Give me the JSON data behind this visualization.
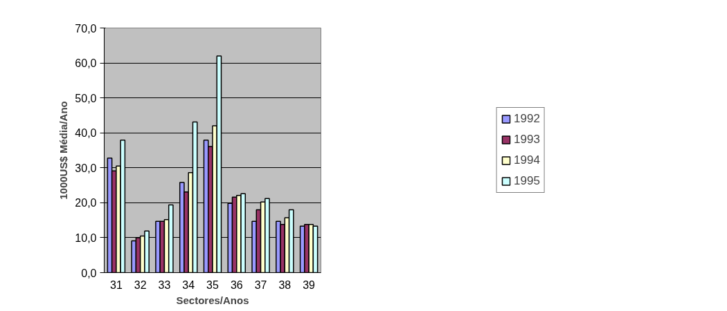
{
  "chart_data": {
    "type": "bar",
    "xlabel": "Sectores/Anos",
    "ylabel": "1000US$ Média/Ano",
    "categories": [
      "31",
      "32",
      "33",
      "34",
      "35",
      "36",
      "37",
      "38",
      "39"
    ],
    "series": [
      {
        "name": "1992",
        "color": "#9999ff",
        "values": [
          32.8,
          9.1,
          14.7,
          25.8,
          37.9,
          19.8,
          14.7,
          14.7,
          13.3
        ]
      },
      {
        "name": "1993",
        "color": "#993366",
        "values": [
          29.1,
          10.0,
          14.7,
          23.1,
          36.1,
          21.6,
          18.0,
          13.8,
          13.8
        ]
      },
      {
        "name": "1994",
        "color": "#ffffcc",
        "values": [
          30.5,
          10.5,
          15.2,
          28.6,
          42.0,
          22.1,
          20.2,
          15.7,
          13.8
        ]
      },
      {
        "name": "1995",
        "color": "#ccffff",
        "values": [
          37.9,
          11.9,
          19.4,
          43.1,
          62.0,
          22.6,
          21.2,
          18.0,
          13.3
        ]
      }
    ],
    "ylim": [
      0,
      70
    ],
    "yticks": [
      {
        "value": 0,
        "label": "0,0"
      },
      {
        "value": 10,
        "label": "10,0"
      },
      {
        "value": 20,
        "label": "20,0"
      },
      {
        "value": 30,
        "label": "30,0"
      },
      {
        "value": 40,
        "label": "40,0"
      },
      {
        "value": 50,
        "label": "50,0"
      },
      {
        "value": 60,
        "label": "60,0"
      },
      {
        "value": 70,
        "label": "70,0"
      }
    ],
    "grid": "y",
    "legend": "right"
  }
}
